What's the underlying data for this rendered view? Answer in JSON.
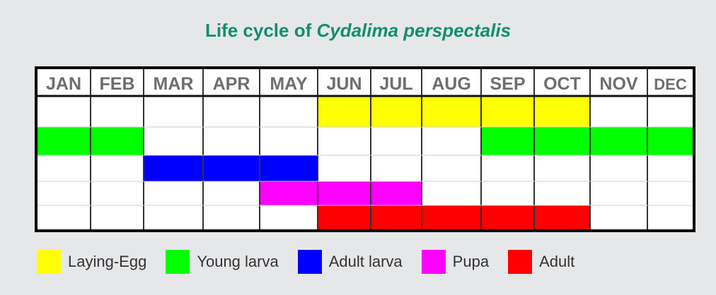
{
  "chart_data": {
    "type": "table",
    "title_prefix": "Life cycle of ",
    "title_species": "Cydalima perspectalis",
    "categories": [
      "JAN",
      "FEB",
      "MAR",
      "APR",
      "MAY",
      "JUN",
      "JUL",
      "AUG",
      "SEP",
      "OCT",
      "NOV",
      "DEC"
    ],
    "series": [
      {
        "name": "Laying-Egg",
        "color": "#ffff00",
        "months": [
          6,
          7,
          8,
          9,
          10
        ]
      },
      {
        "name": "Young larva",
        "color": "#00ff00",
        "months": [
          1,
          2,
          9,
          10,
          11,
          12
        ]
      },
      {
        "name": "Adult larva",
        "color": "#0000ff",
        "months": [
          3,
          4,
          5
        ]
      },
      {
        "name": "Pupa",
        "color": "#ff00ff",
        "months": [
          5,
          6,
          7
        ]
      },
      {
        "name": "Adult",
        "color": "#ff0000",
        "months": [
          6,
          7,
          8,
          9,
          10
        ]
      }
    ]
  }
}
